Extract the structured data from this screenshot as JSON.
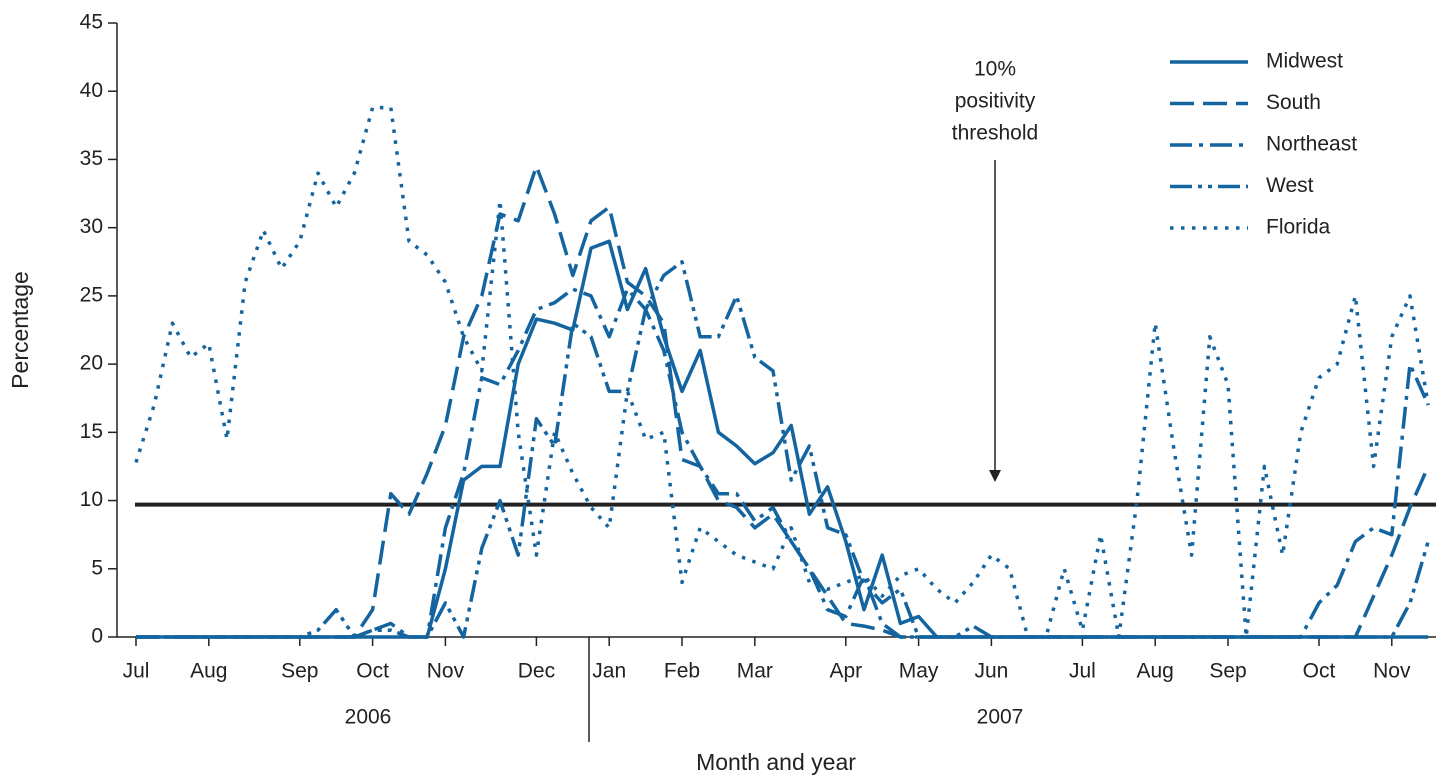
{
  "chart_data": {
    "type": "line",
    "x_label": "Month and year",
    "y_label": "Percentage",
    "categories": [
      "Jul",
      null,
      null,
      null,
      "Aug",
      null,
      null,
      null,
      null,
      "Sep",
      null,
      null,
      null,
      "Oct",
      null,
      null,
      null,
      "Nov",
      null,
      null,
      null,
      null,
      "Dec",
      null,
      null,
      null,
      "Jan",
      null,
      null,
      null,
      "Feb",
      null,
      null,
      null,
      "Mar",
      null,
      null,
      null,
      null,
      "Apr",
      null,
      null,
      null,
      "May",
      null,
      null,
      null,
      "Jun",
      null,
      null,
      null,
      null,
      "Jul",
      null,
      null,
      null,
      "Aug",
      null,
      null,
      null,
      "Sep",
      null,
      null,
      null,
      null,
      "Oct",
      null,
      null,
      null,
      "Nov",
      null,
      null
    ],
    "x_group_labels": [
      "2006",
      "2007"
    ],
    "ylim": [
      0,
      45
    ],
    "yticks": [
      0,
      5,
      10,
      15,
      20,
      25,
      30,
      35,
      40,
      45
    ],
    "reference_line": {
      "value": 9.7,
      "color": "#222222"
    },
    "annotation": {
      "lines": [
        "10%",
        "positivity",
        "threshold"
      ]
    },
    "legend": "top-right",
    "series": [
      {
        "name": "Midwest",
        "color": "#1464a0",
        "dash": "solid",
        "values": [
          0,
          0,
          0,
          0,
          0,
          0,
          0,
          0,
          0,
          0,
          0,
          0,
          0,
          0,
          0,
          0,
          0,
          5,
          11.5,
          12.5,
          12.5,
          20,
          23.3,
          23,
          22.5,
          28.5,
          29,
          24,
          27,
          22,
          18,
          21,
          15,
          14,
          12.7,
          13.5,
          15.5,
          9,
          11,
          7,
          2,
          6,
          1,
          1.5,
          0,
          0,
          0,
          0,
          0,
          0,
          0,
          0,
          0,
          0,
          0,
          0,
          0,
          0,
          0,
          0,
          0,
          0,
          0,
          0,
          0,
          0,
          0,
          0,
          0,
          0,
          0,
          0
        ]
      },
      {
        "name": "South",
        "color": "#1464a0",
        "dash": "dashed",
        "values": [
          0,
          0,
          0,
          0,
          0,
          0,
          0,
          0,
          0,
          0,
          0,
          0,
          0,
          2,
          10.5,
          9,
          12,
          15.5,
          22,
          25,
          31,
          30.5,
          34.5,
          31,
          26.5,
          30.5,
          31.5,
          26,
          25,
          23,
          13,
          12.5,
          10,
          9.5,
          8,
          9,
          7,
          5,
          3,
          1,
          0.8,
          0.5,
          0,
          0,
          0,
          0,
          0,
          0,
          0,
          0,
          0,
          0,
          0,
          0,
          0,
          0,
          0,
          0,
          0,
          0,
          0,
          0,
          0,
          0,
          0,
          0,
          0,
          0,
          3,
          6,
          9.5,
          12.5
        ]
      },
      {
        "name": "Northeast",
        "color": "#1464a0",
        "dash": "dashdot",
        "values": [
          0,
          0,
          0,
          0,
          0,
          0,
          0,
          0,
          0,
          0,
          0,
          0,
          0,
          0.5,
          1,
          0,
          0,
          8,
          12,
          19,
          18.5,
          21,
          24,
          24.5,
          25.5,
          25,
          22,
          25.5,
          24,
          21,
          15,
          12.5,
          10.5,
          10.5,
          8.5,
          9.5,
          7,
          5,
          2,
          1.5,
          4.5,
          1,
          0,
          0,
          0,
          0,
          0,
          0,
          0,
          0,
          0,
          0,
          0,
          0,
          0,
          0,
          0,
          0,
          0,
          0,
          0,
          0,
          0,
          0,
          0,
          2.5,
          3.8,
          7,
          8,
          7.5,
          20,
          17
        ]
      },
      {
        "name": "West",
        "color": "#1464a0",
        "dash": "dashdotdot",
        "values": [
          0,
          0,
          0,
          0,
          0,
          0,
          0,
          0,
          0,
          0,
          0.5,
          2,
          0,
          0.5,
          0.5,
          0,
          0,
          2.5,
          0,
          6.5,
          10,
          6,
          16,
          14,
          23,
          22,
          18,
          18,
          24,
          26.5,
          27.5,
          22,
          22,
          25,
          20.5,
          19.5,
          11.5,
          14,
          8,
          7.5,
          4,
          2.5,
          3.5,
          0,
          0,
          0,
          0.8,
          0,
          0,
          0,
          0,
          0,
          0,
          0,
          0,
          0,
          0,
          0,
          0,
          0,
          0,
          0,
          0,
          0,
          0,
          0,
          0,
          0,
          0,
          0,
          2.5,
          7
        ]
      },
      {
        "name": "Florida",
        "color": "#1464a0",
        "dash": "dotted",
        "values": [
          12.8,
          17,
          23,
          20.5,
          21.5,
          14.5,
          26,
          29.8,
          27,
          29,
          34,
          31.5,
          34,
          38.8,
          38.8,
          29,
          28,
          26,
          22,
          19.5,
          32,
          15,
          6,
          15,
          12,
          9.5,
          8,
          18,
          14.5,
          15,
          4,
          8,
          7,
          6,
          5.5,
          5,
          8,
          4,
          3.5,
          4,
          4.5,
          3,
          4.5,
          5,
          3.5,
          2.5,
          4,
          6,
          5,
          0,
          0,
          5,
          0.5,
          7.5,
          0,
          10,
          23,
          14,
          6,
          22,
          18.5,
          0,
          12.5,
          6,
          15,
          19,
          20,
          25,
          12.5,
          22,
          25,
          17
        ]
      }
    ]
  }
}
